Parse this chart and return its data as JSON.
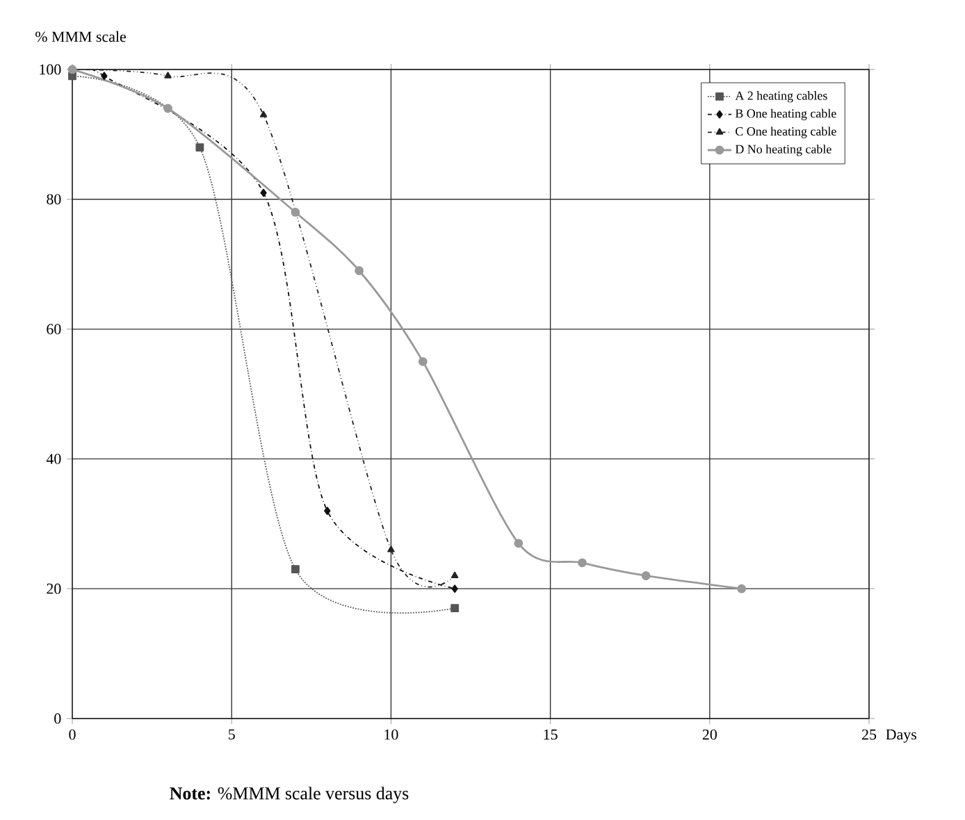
{
  "chart_data": {
    "type": "line",
    "ylabel": "% MMM scale",
    "xlabel": "Days",
    "xlim": [
      0,
      25
    ],
    "xticks": [
      0,
      5,
      10,
      15,
      20,
      25
    ],
    "ylim": [
      0,
      100
    ],
    "yticks": [
      0,
      20,
      40,
      60,
      80,
      100
    ],
    "grid": true,
    "legend": "top right",
    "series": [
      {
        "name": "A 2 heating cables",
        "color": "#555555",
        "marker": "square",
        "line_style": "dotted",
        "x": [
          0,
          4,
          7,
          12
        ],
        "values": [
          99,
          88,
          23,
          17
        ]
      },
      {
        "name": "B One heating cable",
        "color": "#111111",
        "marker": "diamond",
        "line_style": "dashdot",
        "x": [
          0,
          1,
          6,
          8,
          12
        ],
        "values": [
          100,
          99,
          81,
          32,
          20
        ]
      },
      {
        "name": "C One heating cable",
        "color": "#222222",
        "marker": "triangle",
        "line_style": "dashdotdot",
        "x": [
          0,
          3,
          6,
          10,
          12
        ],
        "values": [
          100,
          99,
          93,
          26,
          22
        ]
      },
      {
        "name": "D No heating cable",
        "color": "#999999",
        "marker": "circle",
        "line_style": "solid",
        "x": [
          0,
          3,
          7,
          9,
          11,
          14,
          16,
          18,
          21
        ],
        "values": [
          100,
          94,
          78,
          69,
          55,
          27,
          24,
          22,
          20
        ]
      }
    ],
    "annotations": [
      "**Note:** %MMM scale versus days"
    ]
  }
}
